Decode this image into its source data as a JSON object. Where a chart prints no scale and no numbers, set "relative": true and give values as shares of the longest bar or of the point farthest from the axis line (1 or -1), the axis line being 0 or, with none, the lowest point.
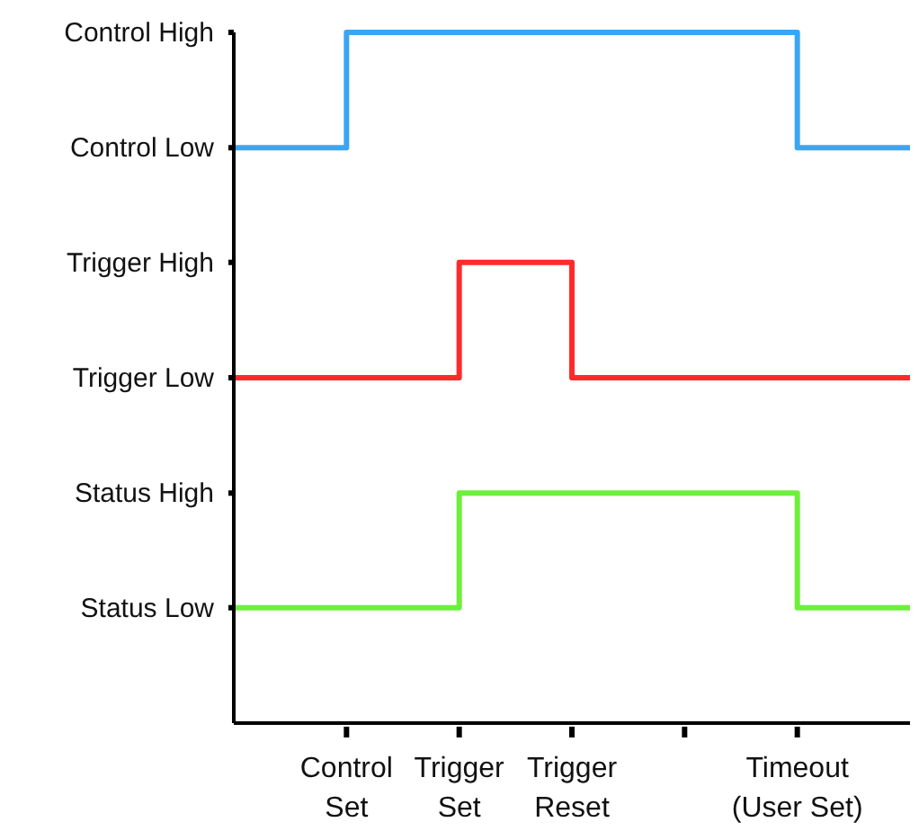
{
  "chart_data": {
    "type": "step",
    "relative": true,
    "categories": [
      null,
      "Control\nSet",
      "Trigger\nSet",
      "Trigger\nReset",
      null,
      "Timeout\n(User Set)",
      null
    ],
    "annotations": [
      "Control High",
      "Control Low",
      "Trigger High",
      "Trigger Low",
      "Status High",
      "Status Low"
    ],
    "grid": false,
    "legend": false,
    "marker": "none",
    "line_style": "solid",
    "series": [
      {
        "color": "#3aa6f2",
        "values": [
          0.833,
          1,
          1,
          1,
          1,
          0.833,
          0.833
        ]
      },
      {
        "color": "#ff2a2a",
        "values": [
          0.5,
          0.5,
          0.667,
          0.5,
          0.5,
          0.5,
          0.5
        ]
      },
      {
        "color": "#6cf03a",
        "values": [
          0.167,
          0.167,
          0.333,
          0.333,
          0.333,
          0.167,
          0.167
        ]
      }
    ]
  }
}
